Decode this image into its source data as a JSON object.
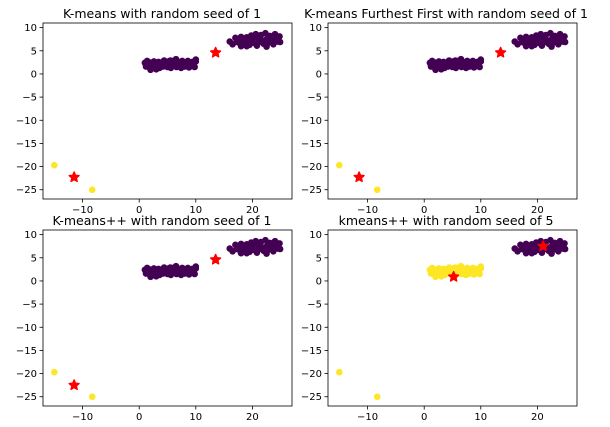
{
  "colors": {
    "purple": "#440154",
    "yellow": "#fde725",
    "red": "#ff0000"
  },
  "chart_data": [
    {
      "type": "scatter",
      "title": "K-means with random seed of 1",
      "xlim": [
        -17,
        27
      ],
      "ylim": [
        -27,
        11
      ],
      "xticks": [
        -10,
        0,
        10,
        20
      ],
      "yticks": [
        10,
        5,
        0,
        -5,
        -10,
        -15,
        -20,
        -25
      ],
      "mid_cluster": "purple",
      "right_cluster": "purple",
      "outliers": "yellow",
      "centroids": [
        [
          -11.5,
          -22.3
        ],
        [
          13.5,
          4.6
        ]
      ]
    },
    {
      "type": "scatter",
      "title": "K-means Furthest First with random seed of 1",
      "xlim": [
        -17,
        27
      ],
      "ylim": [
        -27,
        11
      ],
      "xticks": [
        -10,
        0,
        10,
        20
      ],
      "yticks": [
        10,
        5,
        0,
        -5,
        -10,
        -15,
        -20,
        -25
      ],
      "mid_cluster": "purple",
      "right_cluster": "purple",
      "outliers": "yellow",
      "centroids": [
        [
          -11.5,
          -22.3
        ],
        [
          13.5,
          4.6
        ]
      ]
    },
    {
      "type": "scatter",
      "title": "K-means++ with random seed of 1",
      "xlim": [
        -17,
        27
      ],
      "ylim": [
        -27,
        11
      ],
      "xticks": [
        -10,
        0,
        10,
        20
      ],
      "yticks": [
        10,
        5,
        0,
        -5,
        -10,
        -15,
        -20,
        -25
      ],
      "mid_cluster": "purple",
      "right_cluster": "purple",
      "outliers": "yellow",
      "centroids": [
        [
          -11.5,
          -22.5
        ],
        [
          13.5,
          4.6
        ]
      ]
    },
    {
      "type": "scatter",
      "title": "kmeans++ with random seed of 5",
      "xlim": [
        -17,
        27
      ],
      "ylim": [
        -27,
        11
      ],
      "xticks": [
        -10,
        0,
        10,
        20
      ],
      "yticks": [
        10,
        5,
        0,
        -5,
        -10,
        -15,
        -20,
        -25
      ],
      "mid_cluster": "yellow",
      "right_cluster": "purple",
      "outliers": "yellow",
      "centroids": [
        [
          5.2,
          0.9
        ],
        [
          21,
          7.5
        ]
      ]
    }
  ],
  "point_sets": {
    "mid_cluster": [
      [
        1.0,
        2.4
      ],
      [
        1.2,
        1.6
      ],
      [
        1.4,
        2.8
      ],
      [
        1.6,
        1.9
      ],
      [
        1.8,
        2.5
      ],
      [
        2.0,
        1.2
      ],
      [
        2.2,
        2.1
      ],
      [
        2.4,
        1.7
      ],
      [
        2.6,
        2.7
      ],
      [
        2.8,
        1.4
      ],
      [
        3.0,
        2.2
      ],
      [
        3.2,
        1.8
      ],
      [
        3.4,
        2.6
      ],
      [
        3.6,
        1.3
      ],
      [
        3.8,
        2.0
      ],
      [
        4.0,
        2.5
      ],
      [
        4.2,
        1.6
      ],
      [
        4.4,
        2.9
      ],
      [
        4.6,
        1.9
      ],
      [
        4.8,
        2.3
      ],
      [
        5.0,
        1.5
      ],
      [
        5.2,
        2.7
      ],
      [
        5.4,
        2.0
      ],
      [
        5.6,
        1.3
      ],
      [
        5.8,
        2.4
      ],
      [
        6.0,
        1.8
      ],
      [
        6.2,
        2.9
      ],
      [
        6.4,
        2.2
      ],
      [
        6.6,
        1.5
      ],
      [
        6.8,
        2.6
      ],
      [
        7.0,
        1.9
      ],
      [
        7.2,
        2.4
      ],
      [
        7.4,
        1.3
      ],
      [
        7.6,
        2.8
      ],
      [
        7.8,
        2.0
      ],
      [
        8.0,
        1.6
      ],
      [
        8.2,
        2.5
      ],
      [
        8.4,
        1.9
      ],
      [
        8.6,
        2.8
      ],
      [
        8.8,
        1.4
      ],
      [
        9.0,
        2.2
      ],
      [
        9.2,
        1.7
      ],
      [
        9.4,
        2.6
      ],
      [
        9.6,
        2.0
      ],
      [
        9.8,
        1.5
      ],
      [
        10.0,
        2.7
      ],
      [
        10.0,
        3.1
      ],
      [
        6.5,
        3.2
      ],
      [
        5.5,
        2.9
      ],
      [
        3.0,
        1.0
      ],
      [
        2.0,
        0.9
      ]
    ],
    "right_cluster": [
      [
        16.0,
        7.0
      ],
      [
        16.5,
        6.4
      ],
      [
        17.0,
        7.8
      ],
      [
        17.5,
        7.2
      ],
      [
        17.8,
        6.6
      ],
      [
        18.0,
        8.0
      ],
      [
        18.3,
        7.4
      ],
      [
        18.6,
        6.8
      ],
      [
        19.0,
        7.9
      ],
      [
        19.2,
        7.0
      ],
      [
        19.5,
        6.3
      ],
      [
        19.8,
        8.3
      ],
      [
        20.0,
        7.5
      ],
      [
        20.3,
        6.7
      ],
      [
        20.6,
        8.6
      ],
      [
        21.0,
        7.8
      ],
      [
        21.2,
        6.9
      ],
      [
        21.5,
        8.4
      ],
      [
        21.8,
        7.2
      ],
      [
        22.0,
        6.5
      ],
      [
        22.3,
        8.8
      ],
      [
        22.6,
        7.6
      ],
      [
        22.9,
        6.8
      ],
      [
        23.1,
        8.2
      ],
      [
        23.4,
        7.3
      ],
      [
        23.7,
        6.4
      ],
      [
        24.0,
        8.6
      ],
      [
        24.2,
        7.7
      ],
      [
        24.5,
        7.0
      ],
      [
        24.8,
        8.1
      ],
      [
        24.9,
        6.9
      ],
      [
        19.0,
        6.0
      ],
      [
        20.8,
        6.1
      ],
      [
        22.5,
        5.9
      ],
      [
        18.0,
        6.0
      ],
      [
        17.2,
        6.9
      ]
    ],
    "outliers": [
      [
        -15.0,
        -19.7
      ],
      [
        -8.3,
        -25.0
      ]
    ]
  }
}
